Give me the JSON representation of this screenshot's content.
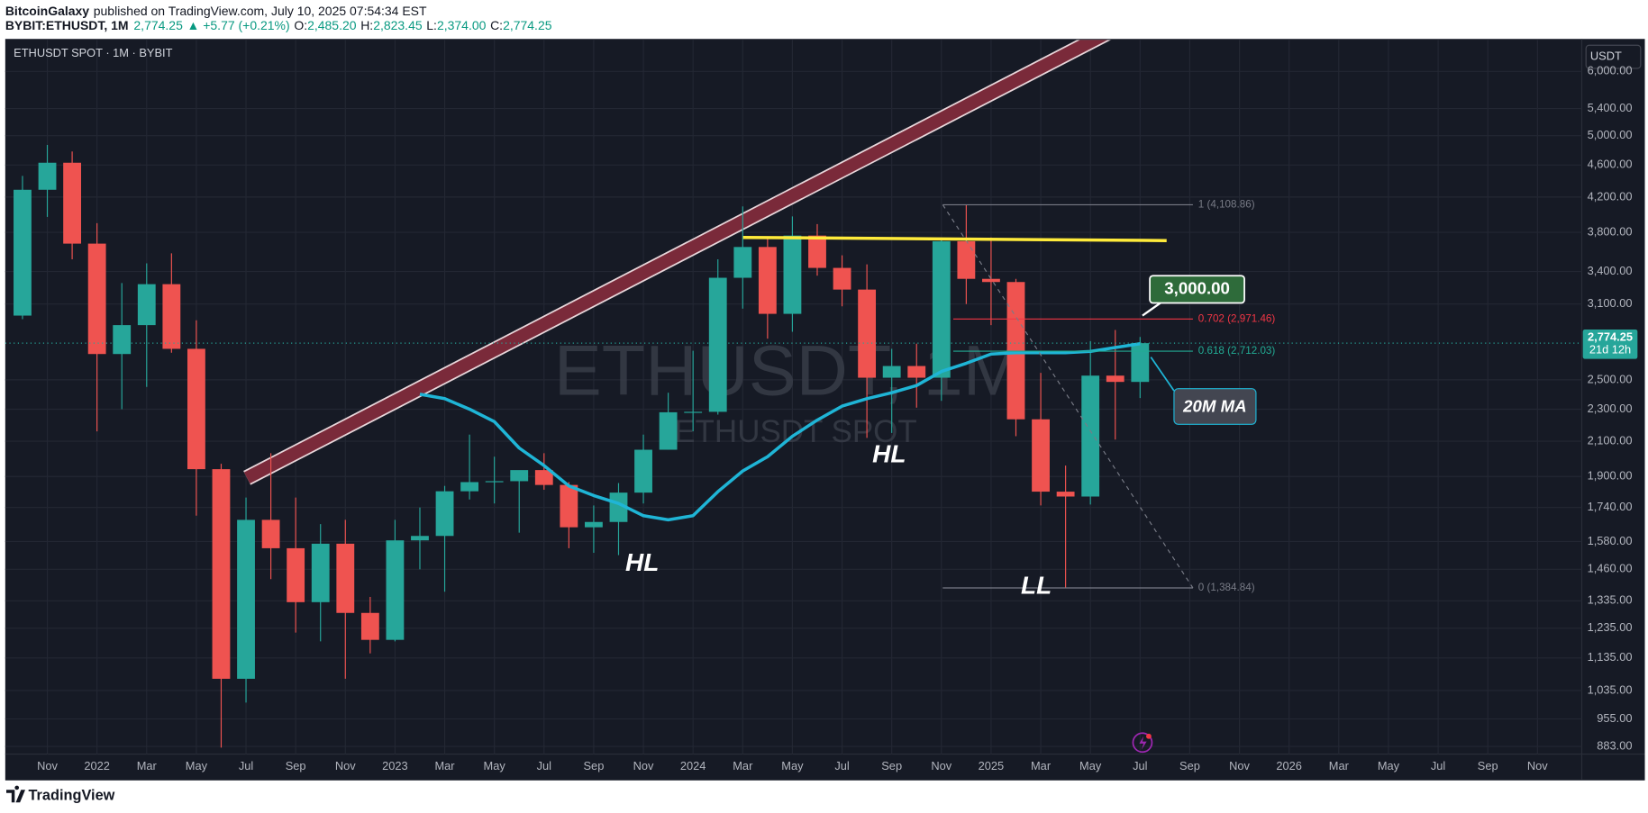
{
  "header": {
    "author": "BitcoinGalaxy",
    "published": "published on TradingView.com, July 10, 2025 07:54:34 EST",
    "symbol": "BYBIT:ETHUSDT, 1M",
    "price": "2,774.25",
    "change": "▲ +5.77 (+0.21%)",
    "ohlc": [
      {
        "key": "O:",
        "value": "2,485.20"
      },
      {
        "key": "H:",
        "value": "2,823.45"
      },
      {
        "key": "L:",
        "value": "2,374.00"
      },
      {
        "key": "C:",
        "value": "2,774.25"
      }
    ]
  },
  "footer": {
    "brand": "TradingView"
  },
  "chart_data": {
    "type": "candlestick",
    "legend": "ETHUSDT SPOT · 1M · BYBIT",
    "watermark": "ETHUSDT, 1M",
    "watermark_sub": "ETHUSDT SPOT",
    "currency": "USDT",
    "log_scale": true,
    "grid": true,
    "up_color": "#26a69a",
    "down_color": "#ef5350",
    "categories": [
      null,
      "Nov",
      null,
      "2022",
      null,
      "Mar",
      null,
      "May",
      null,
      "Jul",
      null,
      "Sep",
      null,
      "Nov",
      null,
      "2023",
      null,
      "Mar",
      null,
      "May",
      null,
      "Jul",
      null,
      "Sep",
      null,
      "Nov",
      null,
      "2024",
      null,
      "Mar",
      null,
      "May",
      null,
      "Jul",
      null,
      "Sep",
      null,
      "Nov",
      null,
      "2025",
      null,
      "Mar",
      null,
      "May",
      null,
      "Jul",
      null,
      "Sep",
      null,
      "Nov",
      null,
      "2026",
      null,
      "Mar",
      null,
      "May",
      null,
      "Jul",
      null,
      "Sep",
      null,
      "Nov",
      null
    ],
    "open": [
      3000,
      4288,
      4630,
      3680,
      2690,
      2920,
      3280,
      2730,
      1940,
      1070,
      1680,
      1550,
      1330,
      1570,
      1290,
      1195,
      1585,
      1605,
      1822,
      1870,
      1875,
      1935,
      1855,
      1645,
      1670,
      1815,
      2050,
      2280,
      2283,
      3340,
      3645,
      3015,
      3765,
      3435,
      3230,
      2515,
      2600,
      2515,
      3705,
      3330,
      3300,
      2235,
      1820,
      1795,
      2530,
      2485.2,
      null,
      null,
      null,
      null,
      null,
      null,
      null,
      null,
      null,
      null,
      null,
      null,
      null,
      null,
      null,
      null,
      null
    ],
    "high": [
      4460,
      4870,
      4780,
      3900,
      3290,
      3480,
      3580,
      2960,
      1970,
      1790,
      2030,
      1790,
      1660,
      1680,
      1350,
      1680,
      1740,
      1850,
      2140,
      2010,
      1930,
      2030,
      1870,
      1750,
      1865,
      2140,
      2410,
      2715,
      3520,
      4090,
      3730,
      3975,
      3890,
      3560,
      3470,
      2730,
      2770,
      3740,
      4110,
      3745,
      3330,
      2550,
      1960,
      2790,
      2880,
      2823.45,
      null,
      null,
      null,
      null,
      null,
      null,
      null,
      null,
      null,
      null,
      null,
      null,
      null,
      null,
      null,
      null,
      null
    ],
    "low": [
      2970,
      3970,
      3520,
      2160,
      2300,
      2450,
      2700,
      1700,
      880,
      1000,
      1420,
      1220,
      1190,
      1070,
      1150,
      1190,
      1460,
      1370,
      1780,
      1760,
      1620,
      1830,
      1550,
      1530,
      1520,
      1760,
      2050,
      2160,
      2265,
      3060,
      2810,
      2865,
      3360,
      3080,
      2120,
      2150,
      2310,
      2355,
      3100,
      2920,
      2130,
      1750,
      1385,
      1755,
      2110,
      2374,
      null,
      null,
      null,
      null,
      null,
      null,
      null,
      null,
      null,
      null,
      null,
      null,
      null,
      null,
      null,
      null,
      null
    ],
    "close": [
      4288,
      4630,
      3680,
      2690,
      2920,
      3280,
      2730,
      1940,
      1070,
      1680,
      1550,
      1330,
      1570,
      1290,
      1195,
      1585,
      1605,
      1822,
      1870,
      1875,
      1935,
      1855,
      1645,
      1670,
      1815,
      2050,
      2280,
      2283,
      3340,
      3645,
      3015,
      3765,
      3435,
      3230,
      2515,
      2600,
      2515,
      3705,
      3330,
      3300,
      2235,
      1820,
      1795,
      2530,
      2485.2,
      2774.25,
      null,
      null,
      null,
      null,
      null,
      null,
      null,
      null,
      null,
      null,
      null,
      null,
      null,
      null,
      null,
      null,
      null
    ],
    "ma": {
      "color": "#1fb5d6",
      "values": [
        null,
        null,
        null,
        null,
        null,
        null,
        null,
        null,
        null,
        null,
        null,
        null,
        null,
        null,
        null,
        null,
        2400,
        2370,
        2300,
        2220,
        2060,
        1960,
        1850,
        1800,
        1760,
        1700,
        1680,
        1700,
        1820,
        1930,
        2010,
        2130,
        2230,
        2320,
        2370,
        2410,
        2460,
        2560,
        2620,
        2690,
        2700,
        2700,
        2700,
        2710,
        2740,
        2770,
        null,
        null,
        null,
        null,
        null,
        null,
        null,
        null,
        null,
        null,
        null,
        null,
        null,
        null,
        null,
        null,
        null
      ]
    },
    "ylim": [
      864,
      6560
    ],
    "yticks": [
      {
        "value": 883,
        "label": "883.00"
      },
      {
        "value": 955,
        "label": "955.00"
      },
      {
        "value": 1035,
        "label": "1,035.00"
      },
      {
        "value": 1135,
        "label": "1,135.00"
      },
      {
        "value": 1235,
        "label": "1,235.00"
      },
      {
        "value": 1335,
        "label": "1,335.00"
      },
      {
        "value": 1460,
        "label": "1,460.00"
      },
      {
        "value": 1580,
        "label": "1,580.00"
      },
      {
        "value": 1740,
        "label": "1,740.00"
      },
      {
        "value": 1900,
        "label": "1,900.00"
      },
      {
        "value": 2100,
        "label": "2,100.00"
      },
      {
        "value": 2300,
        "label": "2,300.00"
      },
      {
        "value": 2500,
        "label": "2,500.00"
      },
      {
        "value": 3100,
        "label": "3,100.00"
      },
      {
        "value": 3400,
        "label": "3,400.00"
      },
      {
        "value": 3800,
        "label": "3,800.00"
      },
      {
        "value": 4200,
        "label": "4,200.00"
      },
      {
        "value": 4600,
        "label": "4,600.00"
      },
      {
        "value": 5000,
        "label": "5,000.00"
      },
      {
        "value": 5400,
        "label": "5,400.00"
      },
      {
        "value": 6000,
        "label": "6,000.00"
      }
    ],
    "price_label": {
      "value": 2774.25,
      "label": "2,774.25"
    },
    "countdown": "21d 12h",
    "fib": [
      {
        "value": 4108.86,
        "label": "1 (4,108.86)",
        "color": "#787b86"
      },
      {
        "value": 2971.46,
        "label": "0.702 (2,971.46)",
        "color": "#f23645"
      },
      {
        "value": 2712.03,
        "label": "0.618 (2,712.03)",
        "color": "#22ab94"
      },
      {
        "value": 1384.84,
        "label": "0 (1,384.84)",
        "color": "#787b86"
      }
    ],
    "target": {
      "value": 3000,
      "label": "3,000.00"
    },
    "annotations": [
      "HL",
      "HL",
      "LL",
      "20M MA"
    ]
  }
}
